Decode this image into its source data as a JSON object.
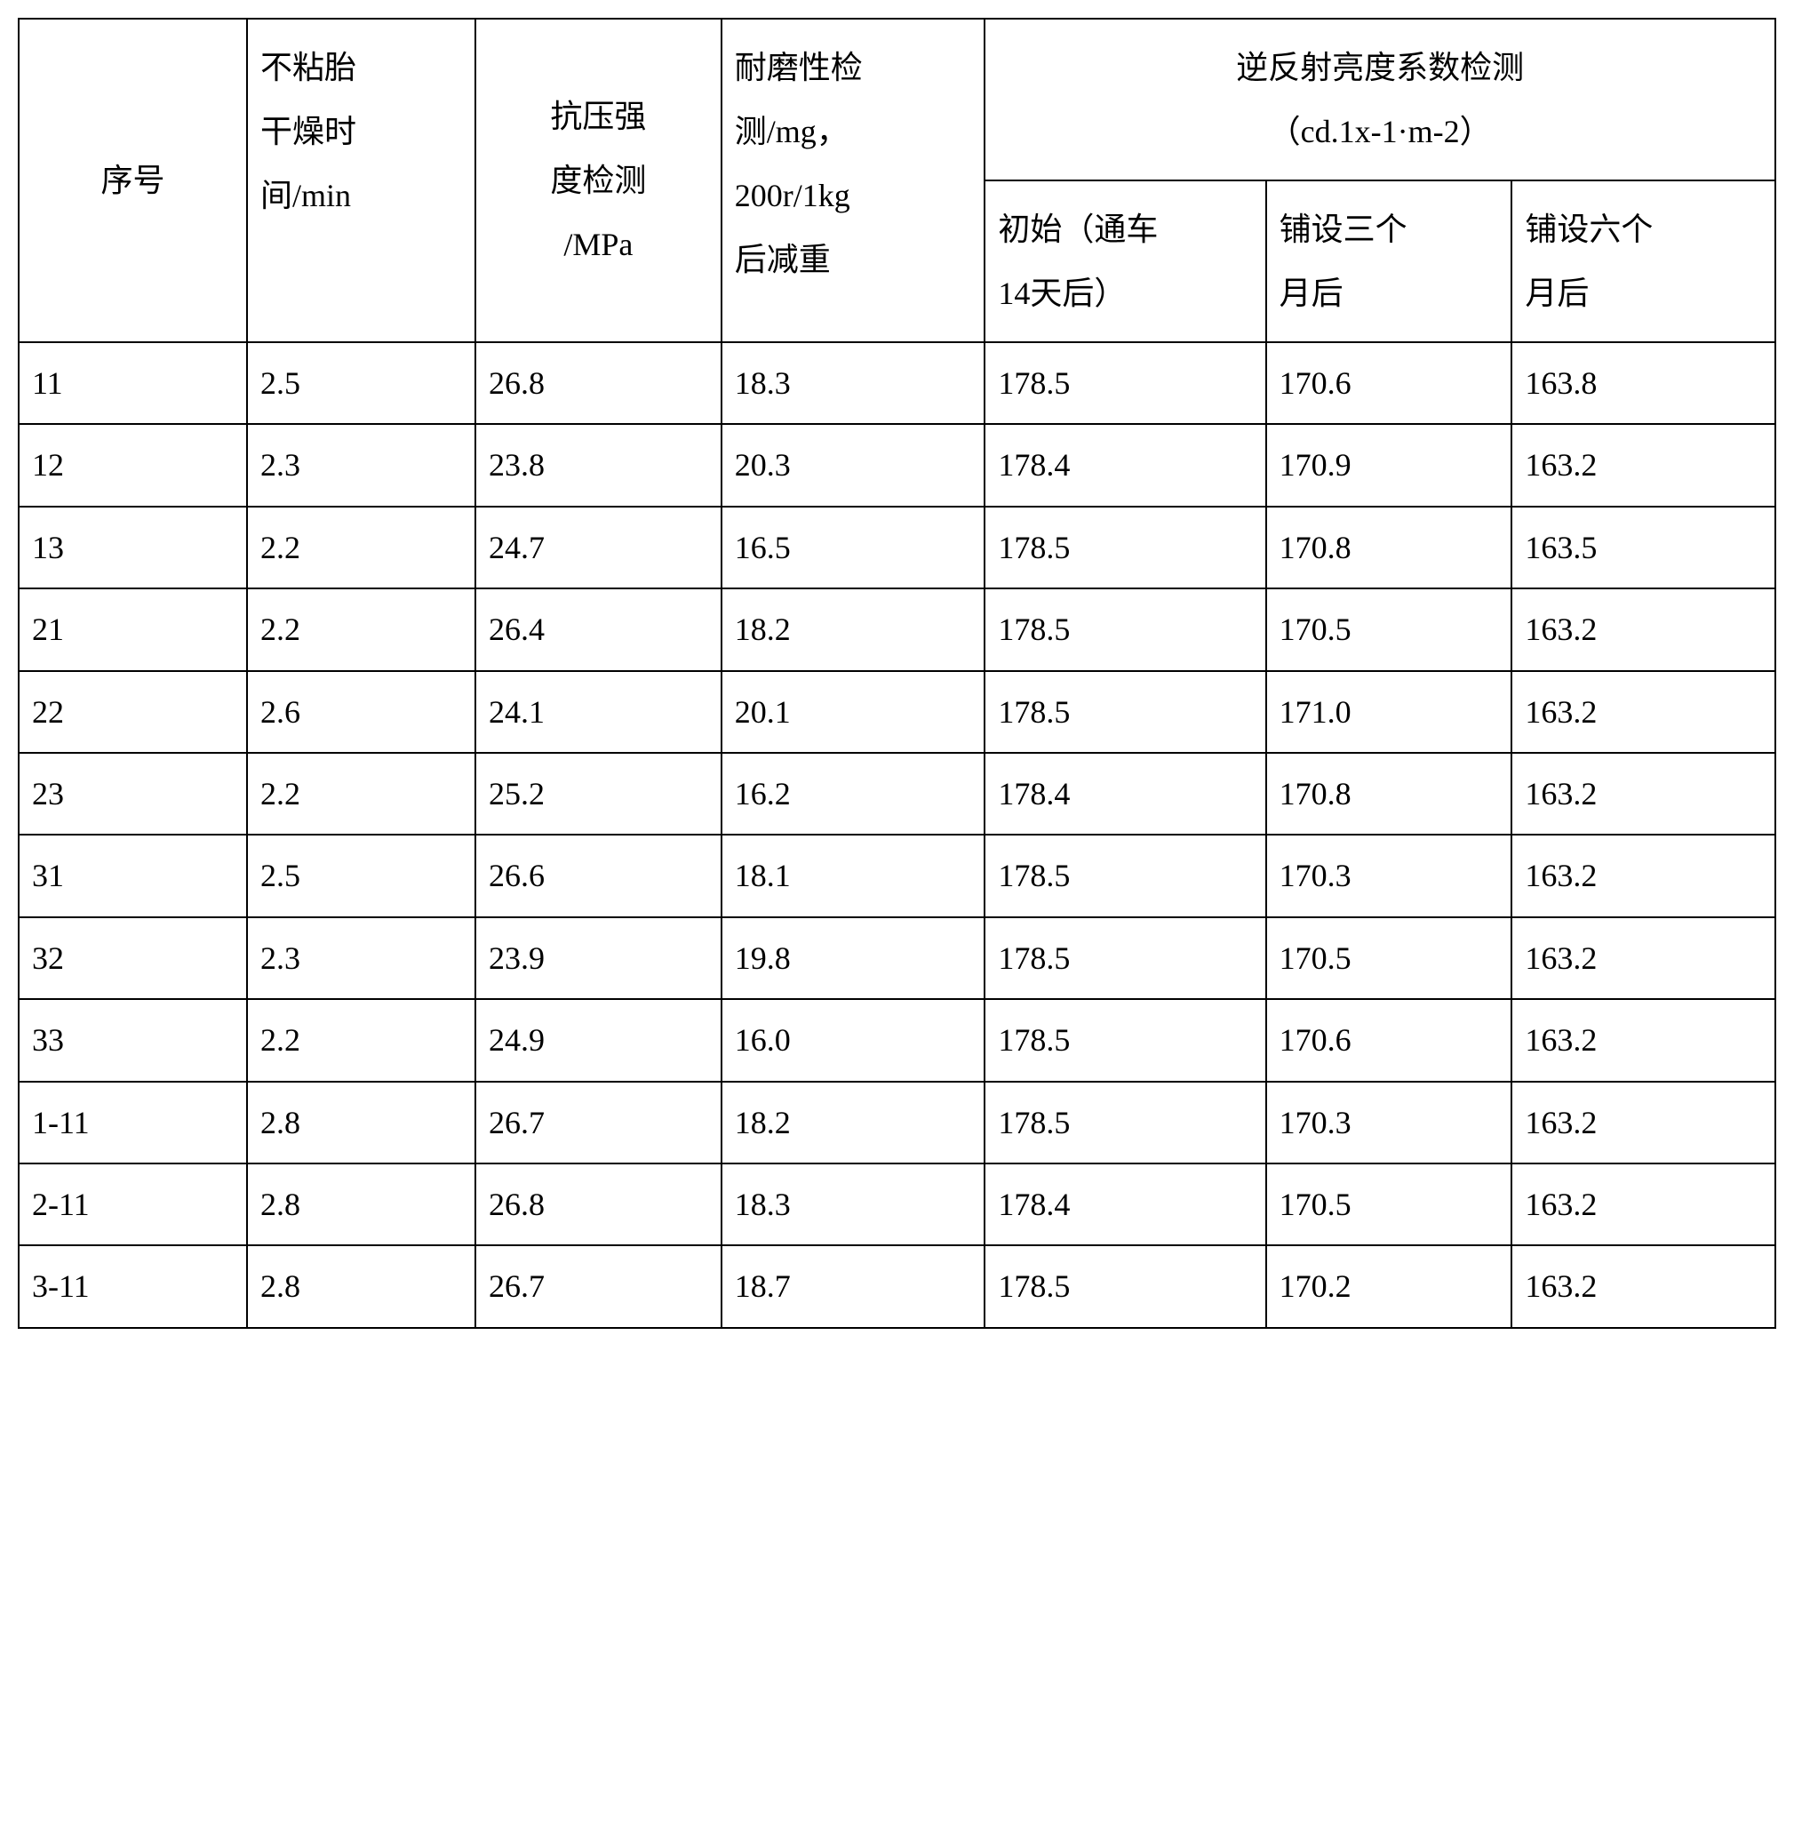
{
  "table": {
    "columns": [
      "序号",
      "不粘胎干燥时间/min",
      "抗压强度检测/MPa",
      "耐磨性检测/mg，200r/1kg后减重",
      "逆反射亮度系数检测（cd.1x-1·m-2）",
      "初始（通车14天后）",
      "铺设三个月后",
      "铺设六个月后"
    ],
    "header": {
      "col0": "序号",
      "col1_line1": "不粘胎",
      "col1_line2": "干燥时",
      "col1_line3": "间/min",
      "col2_line1": "抗压强",
      "col2_line2": "度检测",
      "col2_line3": "/MPa",
      "col3_line1": "耐磨性检",
      "col3_line2": "测/mg，",
      "col3_line3": "200r/1kg",
      "col3_line4": "后减重",
      "merged_line1": "逆反射亮度系数检测",
      "merged_line2": "（cd.1x-1·m-2）",
      "sub4_line1": "初始（通车",
      "sub4_line2": "14天后）",
      "sub5_line1": "铺设三个",
      "sub5_line2": "月后",
      "sub6_line1": "铺设六个",
      "sub6_line2": "月后"
    },
    "rows": [
      [
        "11",
        "2.5",
        "26.8",
        "18.3",
        "178.5",
        "170.6",
        "163.8"
      ],
      [
        "12",
        "2.3",
        "23.8",
        "20.3",
        "178.4",
        "170.9",
        "163.2"
      ],
      [
        "13",
        "2.2",
        "24.7",
        "16.5",
        "178.5",
        "170.8",
        "163.5"
      ],
      [
        "21",
        "2.2",
        "26.4",
        "18.2",
        "178.5",
        "170.5",
        "163.2"
      ],
      [
        "22",
        "2.6",
        "24.1",
        "20.1",
        "178.5",
        "171.0",
        "163.2"
      ],
      [
        "23",
        "2.2",
        "25.2",
        "16.2",
        "178.4",
        "170.8",
        "163.2"
      ],
      [
        "31",
        "2.5",
        "26.6",
        "18.1",
        "178.5",
        "170.3",
        "163.2"
      ],
      [
        "32",
        "2.3",
        "23.9",
        "19.8",
        "178.5",
        "170.5",
        "163.2"
      ],
      [
        "33",
        "2.2",
        "24.9",
        "16.0",
        "178.5",
        "170.6",
        "163.2"
      ],
      [
        "1-11",
        "2.8",
        "26.7",
        "18.2",
        "178.5",
        "170.3",
        "163.2"
      ],
      [
        "2-11",
        "2.8",
        "26.8",
        "18.3",
        "178.4",
        "170.5",
        "163.2"
      ],
      [
        "3-11",
        "2.8",
        "26.7",
        "18.7",
        "178.5",
        "170.2",
        "163.2"
      ]
    ],
    "border_color": "#000000",
    "background_color": "#ffffff",
    "text_color": "#000000",
    "font_size": 36,
    "font_family": "SimSun"
  }
}
